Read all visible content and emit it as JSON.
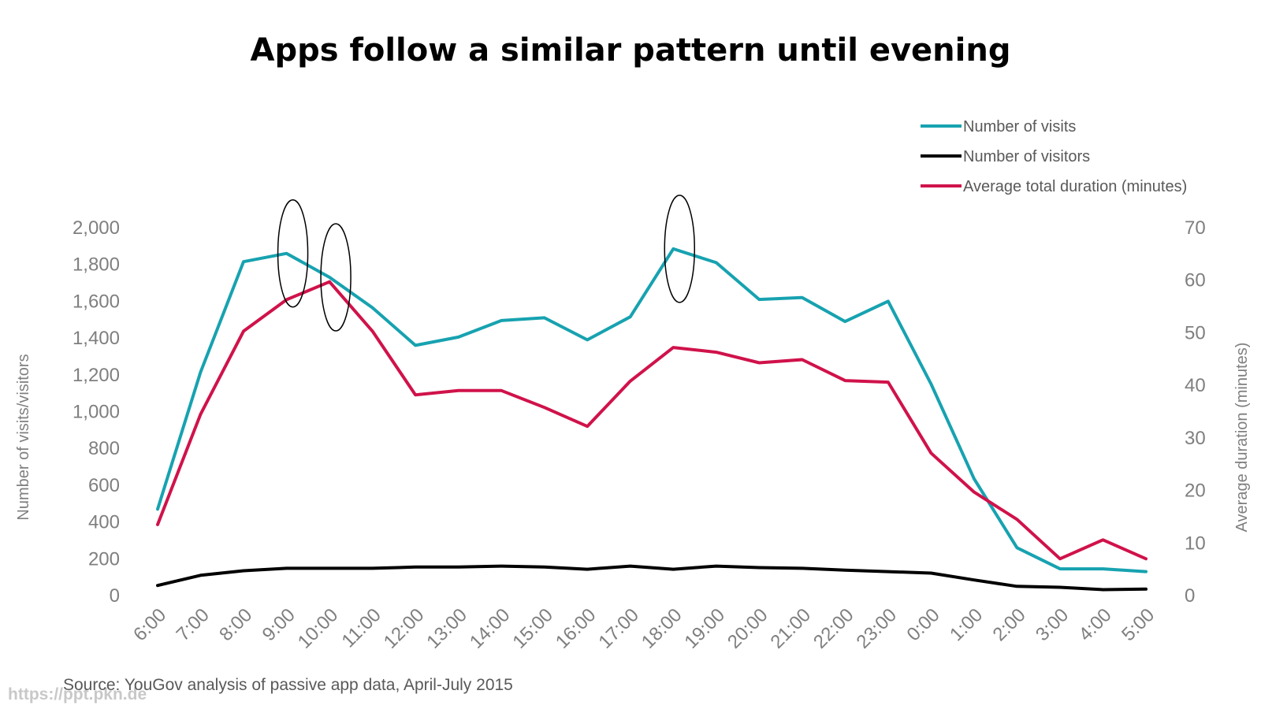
{
  "chart_data": {
    "type": "line",
    "title": "Apps follow a similar pattern until evening",
    "ylabel": "Number of visits/visitors",
    "y2label": "Average duration (minutes)",
    "ylim": [
      0,
      2000
    ],
    "y2lim": [
      0,
      70
    ],
    "yticks": [
      "0",
      "200",
      "400",
      "600",
      "800",
      "1,000",
      "1,200",
      "1,400",
      "1,600",
      "1,800",
      "2,000"
    ],
    "y2ticks": [
      "0",
      "10",
      "20",
      "30",
      "40",
      "50",
      "60",
      "70"
    ],
    "grid": false,
    "legend_position": "top-right",
    "x": [
      "6:00",
      "7:00",
      "8:00",
      "9:00",
      "10:00",
      "11:00",
      "12:00",
      "13:00",
      "14:00",
      "15:00",
      "16:00",
      "17:00",
      "18:00",
      "19:00",
      "20:00",
      "21:00",
      "22:00",
      "23:00",
      "0:00",
      "1:00",
      "2:00",
      "3:00",
      "4:00",
      "5:00"
    ],
    "series": [
      {
        "name": "Number of visits",
        "axis": "left",
        "color": "#17a2b0",
        "values": [
          470,
          1215,
          1815,
          1860,
          1730,
          1565,
          1360,
          1405,
          1495,
          1510,
          1390,
          1515,
          1885,
          1810,
          1610,
          1620,
          1490,
          1600,
          1150,
          635,
          260,
          145,
          145,
          130
        ]
      },
      {
        "name": "Number of visitors",
        "axis": "left",
        "color": "#000000",
        "values": [
          55,
          110,
          135,
          148,
          148,
          148,
          155,
          155,
          160,
          155,
          143,
          160,
          143,
          160,
          152,
          148,
          138,
          130,
          122,
          85,
          50,
          45,
          32,
          35
        ]
      },
      {
        "name": "Average total duration (minutes)",
        "axis": "right",
        "color": "#d0124a",
        "values": [
          13.5,
          34.5,
          50.3,
          56.3,
          59.7,
          50.3,
          38.2,
          39,
          39,
          35.8,
          32.2,
          40.8,
          47.2,
          46.3,
          44.3,
          44.9,
          40.9,
          40.6,
          27.1,
          19.7,
          14.5,
          7,
          10.6,
          7
        ]
      }
    ],
    "annotations": [
      {
        "type": "ellipse",
        "x": "9:00"
      },
      {
        "type": "ellipse",
        "x": "10:00"
      },
      {
        "type": "ellipse",
        "x": "18:00"
      }
    ]
  },
  "source": "Source: YouGov analysis of passive app data, April-July 2015",
  "watermark": "https://ppt.pkn.de"
}
